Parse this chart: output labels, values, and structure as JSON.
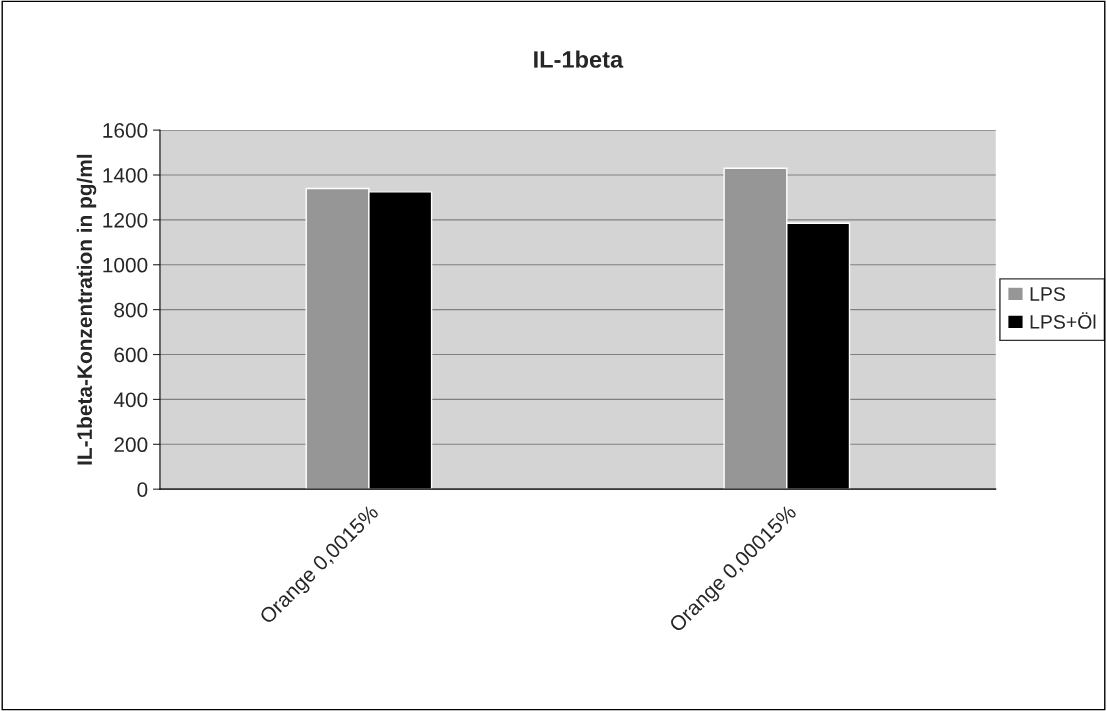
{
  "chart_data": {
    "type": "bar",
    "title": "IL-1beta",
    "ylabel": "IL-1beta-Konzentration in pg/ml",
    "categories": [
      "Orange 0,0015%",
      "Orange 0,00015%"
    ],
    "series": [
      {
        "name": "LPS",
        "color": "#969696",
        "values": [
          1340,
          1430
        ]
      },
      {
        "name": "LPS+Öl",
        "color": "#000000",
        "values": [
          1325,
          1185
        ]
      }
    ],
    "ylim": [
      0,
      1600
    ],
    "yticks": [
      0,
      200,
      400,
      600,
      800,
      1000,
      1200,
      1400,
      1600
    ],
    "grid": "y",
    "legend": "right"
  }
}
